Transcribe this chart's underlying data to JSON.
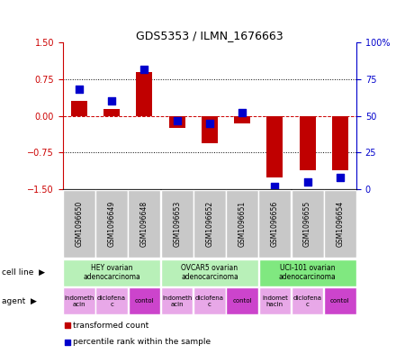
{
  "title": "GDS5353 / ILMN_1676663",
  "samples": [
    "GSM1096650",
    "GSM1096649",
    "GSM1096648",
    "GSM1096653",
    "GSM1096652",
    "GSM1096651",
    "GSM1096656",
    "GSM1096655",
    "GSM1096654"
  ],
  "red_bars": [
    0.3,
    0.15,
    0.9,
    -0.25,
    -0.55,
    -0.15,
    -1.25,
    -1.1,
    -1.1
  ],
  "blue_dots": [
    0.68,
    0.6,
    0.82,
    0.47,
    0.45,
    0.52,
    0.02,
    0.05,
    0.08
  ],
  "ylim": [
    -1.5,
    1.5
  ],
  "yticks_left": [
    -1.5,
    -0.75,
    0,
    0.75,
    1.5
  ],
  "yticks_right": [
    0,
    25,
    50,
    75,
    100
  ],
  "cell_lines": [
    {
      "label": "HEY ovarian\nadenocarcinoma",
      "start": 0,
      "end": 3,
      "color": "#b8f0b8"
    },
    {
      "label": "OVCAR5 ovarian\nadenocarcinoma",
      "start": 3,
      "end": 6,
      "color": "#b8f0b8"
    },
    {
      "label": "UCI-101 ovarian\nadenocarcinoma",
      "start": 6,
      "end": 9,
      "color": "#80e880"
    }
  ],
  "agents": [
    {
      "label": "indometh\nacin",
      "start": 0,
      "end": 1,
      "color": "#e8a8e8"
    },
    {
      "label": "diclofena\nc",
      "start": 1,
      "end": 2,
      "color": "#e8a8e8"
    },
    {
      "label": "contol",
      "start": 2,
      "end": 3,
      "color": "#cc44cc"
    },
    {
      "label": "indometh\nacin",
      "start": 3,
      "end": 4,
      "color": "#e8a8e8"
    },
    {
      "label": "diclofena\nc",
      "start": 4,
      "end": 5,
      "color": "#e8a8e8"
    },
    {
      "label": "contol",
      "start": 5,
      "end": 6,
      "color": "#cc44cc"
    },
    {
      "label": "indomet\nhacin",
      "start": 6,
      "end": 7,
      "color": "#e8a8e8"
    },
    {
      "label": "diclofena\nc",
      "start": 7,
      "end": 8,
      "color": "#e8a8e8"
    },
    {
      "label": "contol",
      "start": 8,
      "end": 9,
      "color": "#cc44cc"
    }
  ],
  "bar_color": "#c00000",
  "dot_color": "#0000cc",
  "bar_width": 0.5,
  "dot_size": 30,
  "sample_box_color": "#c8c8c8",
  "left_axis_color": "#cc0000",
  "right_axis_color": "#0000cc"
}
